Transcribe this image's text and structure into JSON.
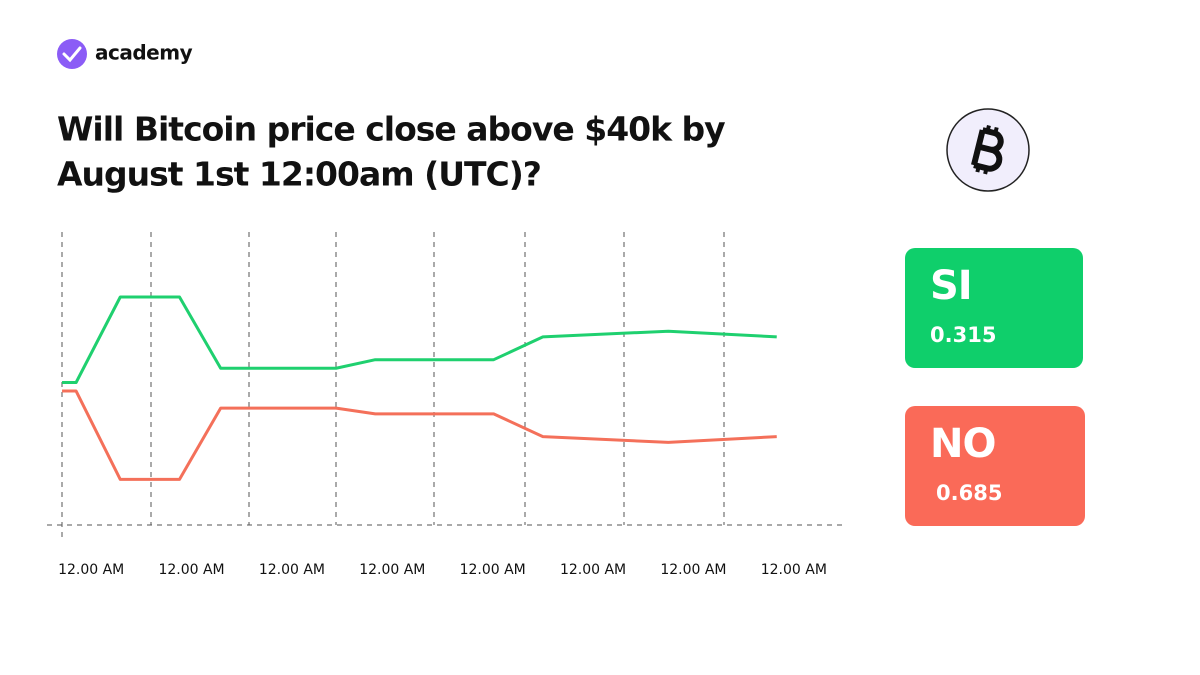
{
  "brand": "academy",
  "chart_data": {
    "type": "line",
    "title": [
      "Will Bitcoin price close above $40k by",
      "August 1st 12:00am (UTC)?"
    ],
    "x": [
      -0.29,
      -0.15,
      0.29,
      0.88,
      1.29,
      2.44,
      2.83,
      4.01,
      4.5,
      5.75,
      6.83
    ],
    "xlim": [
      -0.44,
      7.49
    ],
    "xticks": [
      {
        "value": 0,
        "label": "12.00 AM"
      },
      {
        "value": 1,
        "label": "12.00 AM"
      },
      {
        "value": 2,
        "label": "12.00 AM"
      },
      {
        "value": 3,
        "label": "12.00 AM"
      },
      {
        "value": 4,
        "label": "12.00 AM"
      },
      {
        "value": 5,
        "label": "12.00 AM"
      },
      {
        "value": 6,
        "label": "12.00 AM"
      },
      {
        "value": 7,
        "label": "12.00 AM"
      }
    ],
    "ylim": [
      0,
      1
    ],
    "series": [
      {
        "name": "SI",
        "color": "#1fd06f",
        "values": [
          0.5,
          0.5,
          0.8,
          0.8,
          0.55,
          0.55,
          0.58,
          0.58,
          0.66,
          0.68,
          0.66
        ]
      },
      {
        "name": "NO",
        "color": "#f4705a",
        "values": [
          0.47,
          0.47,
          0.16,
          0.16,
          0.41,
          0.41,
          0.39,
          0.39,
          0.31,
          0.29,
          0.31
        ]
      }
    ]
  },
  "cards": [
    {
      "value": 0.315,
      "color": "#0fcf6b"
    },
    {
      "value": 0.685,
      "color": "#fa6a58"
    }
  ]
}
